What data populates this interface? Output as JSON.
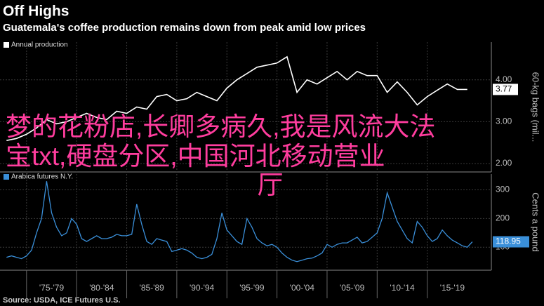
{
  "header": {
    "title": "Off Highs",
    "subtitle": "Guatemala's coffee production remains down from peak amid low prices",
    "source": "Source: USDA, ICE Futures U.S."
  },
  "overlay": {
    "lines": [
      "梦的花粉店,长卿多病久,我是风流大法",
      "宝txt,硬盘分区,中国河北移动营业",
      "厅"
    ]
  },
  "chart_data": [
    {
      "type": "line",
      "y_label": "60-kg bags (mil...",
      "x": [
        1973,
        1974,
        1975,
        1976,
        1977,
        1978,
        1979,
        1980,
        1981,
        1982,
        1983,
        1984,
        1985,
        1986,
        1987,
        1988,
        1989,
        1990,
        1991,
        1992,
        1993,
        1994,
        1995,
        1996,
        1997,
        1998,
        1999,
        2000,
        2001,
        2002,
        2003,
        2004,
        2005,
        2006,
        2007,
        2008,
        2009,
        2010,
        2011,
        2012,
        2013,
        2014,
        2015,
        2016,
        2017,
        2018,
        2019
      ],
      "series": [
        {
          "name": "Annual production",
          "color": "#ffffff",
          "values": [
            2.55,
            2.6,
            2.7,
            2.85,
            3.05,
            2.95,
            3.0,
            3.1,
            3.2,
            3.1,
            3.05,
            3.25,
            3.2,
            3.35,
            3.3,
            3.6,
            3.65,
            3.5,
            3.55,
            3.7,
            3.6,
            3.5,
            3.8,
            4.0,
            4.15,
            4.3,
            4.35,
            4.4,
            4.55,
            3.7,
            4.0,
            3.9,
            4.05,
            4.2,
            4.0,
            4.2,
            4.1,
            4.1,
            3.7,
            3.95,
            3.7,
            3.4,
            3.6,
            3.75,
            3.9,
            3.77,
            3.77
          ],
          "value_labels": [
            null,
            null,
            null,
            null,
            null,
            null,
            null,
            null,
            null,
            null,
            null,
            null,
            null,
            null,
            null,
            null,
            null,
            null,
            null,
            null,
            null,
            null,
            null,
            null,
            null,
            null,
            null,
            null,
            null,
            null,
            null,
            null,
            null,
            null,
            null,
            null,
            null,
            null,
            null,
            null,
            null,
            null,
            null,
            null,
            null,
            null,
            "3.77"
          ]
        }
      ],
      "xlim": [
        1972.35,
        2021.4
      ],
      "ylim": [
        1.8,
        4.9
      ],
      "yticks": [
        {
          "value": 2,
          "label": "2.00"
        },
        {
          "value": 3,
          "label": "3.00"
        },
        {
          "value": 4,
          "label": "4.00"
        }
      ],
      "xticks": [
        1975,
        1980,
        1985,
        1990,
        1995,
        2000,
        2005,
        2010,
        2015
      ],
      "grid": true
    },
    {
      "type": "line",
      "y_label": "Cents a pound",
      "x": [
        1973,
        1973.5,
        1974,
        1974.5,
        1975,
        1975.5,
        1976,
        1976.5,
        1977,
        1977.5,
        1978,
        1978.5,
        1979,
        1979.5,
        1980,
        1980.5,
        1981,
        1981.5,
        1982,
        1982.5,
        1983,
        1983.5,
        1984,
        1984.5,
        1985,
        1985.5,
        1986,
        1986.5,
        1987,
        1987.5,
        1988,
        1988.5,
        1989,
        1989.5,
        1990,
        1990.5,
        1991,
        1991.5,
        1992,
        1992.5,
        1993,
        1993.5,
        1994,
        1994.5,
        1995,
        1995.5,
        1996,
        1996.5,
        1997,
        1997.5,
        1998,
        1998.5,
        1999,
        1999.5,
        2000,
        2000.5,
        2001,
        2001.5,
        2002,
        2002.5,
        2003,
        2003.5,
        2004,
        2004.5,
        2005,
        2005.5,
        2006,
        2006.5,
        2007,
        2007.5,
        2008,
        2008.5,
        2009,
        2009.5,
        2010,
        2010.5,
        2011,
        2011.5,
        2012,
        2012.5,
        2013,
        2013.5,
        2014,
        2014.5,
        2015,
        2015.5,
        2016,
        2016.5,
        2017,
        2017.5,
        2018,
        2018.5,
        2019,
        2019.5
      ],
      "series": [
        {
          "name": "Arabica futures N.Y.",
          "color": "#3a8fd9",
          "values": [
            65,
            70,
            65,
            60,
            70,
            90,
            150,
            200,
            330,
            220,
            170,
            140,
            150,
            200,
            180,
            130,
            120,
            130,
            140,
            130,
            130,
            135,
            145,
            140,
            140,
            145,
            250,
            180,
            120,
            110,
            130,
            125,
            120,
            85,
            90,
            95,
            90,
            80,
            65,
            60,
            65,
            75,
            130,
            220,
            160,
            140,
            120,
            110,
            200,
            170,
            130,
            115,
            105,
            110,
            100,
            80,
            65,
            55,
            50,
            55,
            60,
            62,
            70,
            80,
            110,
            100,
            110,
            115,
            115,
            125,
            135,
            115,
            120,
            135,
            150,
            200,
            290,
            240,
            190,
            160,
            130,
            115,
            190,
            170,
            140,
            120,
            130,
            160,
            140,
            125,
            115,
            105,
            100,
            118.95
          ],
          "value_labels": [
            null,
            null,
            null,
            null,
            null,
            null,
            null,
            null,
            null,
            null,
            null,
            null,
            null,
            null,
            null,
            null,
            null,
            null,
            null,
            null,
            null,
            null,
            null,
            null,
            null,
            null,
            null,
            null,
            null,
            null,
            null,
            null,
            null,
            null,
            null,
            null,
            null,
            null,
            null,
            null,
            null,
            null,
            null,
            null,
            null,
            null,
            null,
            null,
            null,
            null,
            null,
            null,
            null,
            null,
            null,
            null,
            null,
            null,
            null,
            null,
            null,
            null,
            null,
            null,
            null,
            null,
            null,
            null,
            null,
            null,
            null,
            null,
            null,
            null,
            null,
            null,
            null,
            null,
            null,
            null,
            null,
            null,
            null,
            null,
            null,
            null,
            null,
            null,
            null,
            null,
            null,
            null,
            null,
            "118.95"
          ]
        }
      ],
      "xlim": [
        1972.35,
        2021.4
      ],
      "ylim": [
        20,
        355
      ],
      "yticks": [
        100,
        200,
        300
      ],
      "xticks": [
        {
          "value": 1975,
          "label": "'75-'79"
        },
        {
          "value": 1980,
          "label": "'80-'84"
        },
        {
          "value": 1985,
          "label": "'85-'89"
        },
        {
          "value": 1990,
          "label": "'90-'94"
        },
        {
          "value": 1995,
          "label": "'95-'99"
        },
        {
          "value": 2000,
          "label": "'00-'04"
        },
        {
          "value": 2005,
          "label": "'05-'09"
        },
        {
          "value": 2010,
          "label": "'10-'14"
        },
        {
          "value": 2015,
          "label": "'15-'19"
        }
      ],
      "grid": true
    }
  ]
}
